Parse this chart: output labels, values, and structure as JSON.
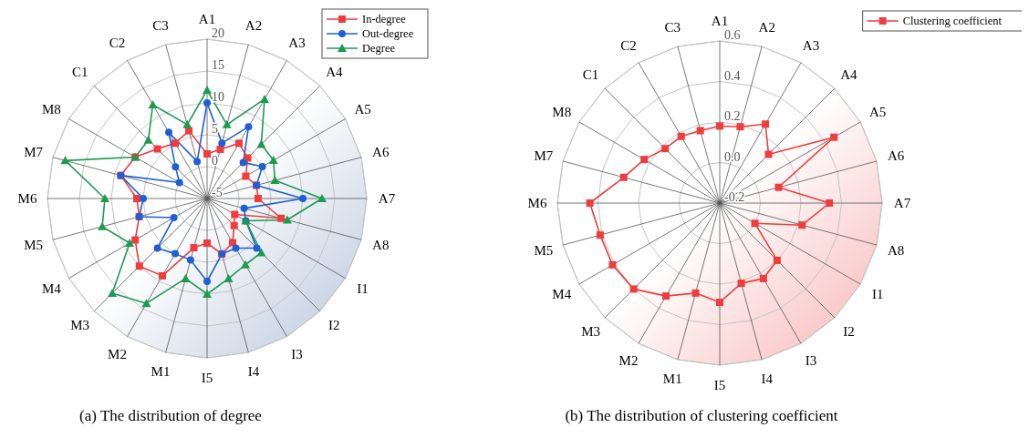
{
  "chart_data": [
    {
      "type": "radar",
      "title": "(a) The distribution of degree",
      "categories": [
        "A1",
        "A2",
        "A3",
        "A4",
        "A5",
        "A6",
        "A7",
        "A8",
        "I1",
        "I2",
        "I3",
        "I4",
        "I5",
        "M1",
        "M2",
        "M3",
        "M4",
        "M5",
        "M6",
        "M7",
        "M8",
        "C1",
        "C2",
        "C3"
      ],
      "series": [
        {
          "name": "In-degree",
          "color": "#f03c3c",
          "marker": "square",
          "values": [
            2,
            3,
            5,
            4,
            2,
            3,
            3,
            7,
            0,
            1,
            3,
            4,
            2,
            3,
            9,
            10,
            8,
            6,
            6,
            9,
            8,
            6,
            5,
            6
          ]
        },
        {
          "name": "Out-degree",
          "color": "#1f5fd6",
          "marker": "circle",
          "values": [
            10,
            4,
            8,
            3,
            5,
            3,
            10,
            1,
            2,
            6,
            4,
            4,
            8,
            5,
            5,
            6,
            1,
            6,
            5,
            9,
            0,
            2,
            7,
            1
          ]
        },
        {
          "name": "Degree",
          "color": "#1e9a50",
          "marker": "triangle",
          "values": [
            12,
            7,
            13,
            7,
            7,
            6,
            13,
            8,
            2,
            7,
            7,
            8,
            10,
            8,
            14,
            16,
            9,
            12,
            11,
            18,
            8,
            8,
            12,
            7
          ]
        }
      ],
      "ylim": [
        -5,
        20
      ],
      "yticks": [
        -5,
        0,
        5,
        10,
        15,
        20
      ],
      "grid": true,
      "legend": "top right"
    },
    {
      "type": "radar",
      "title": "(b) The distribution of clustering coefficient",
      "categories": [
        "A1",
        "A2",
        "A3",
        "A4",
        "A5",
        "A6",
        "A7",
        "A8",
        "I1",
        "I2",
        "I3",
        "I4",
        "I5",
        "M1",
        "M2",
        "M3",
        "M4",
        "M5",
        "M6",
        "M7",
        "M8",
        "C1",
        "C2",
        "C3"
      ],
      "series": [
        {
          "name": "Clustering coefficient",
          "color": "#f03c3c",
          "marker": "square",
          "values": [
            0.18,
            0.19,
            0.25,
            0.14,
            0.45,
            0.1,
            0.34,
            0.22,
            0.0,
            0.2,
            0.23,
            0.21,
            0.29,
            0.26,
            0.33,
            0.4,
            0.41,
            0.41,
            0.44,
            0.29,
            0.23,
            0.18,
            0.18,
            0.17
          ]
        }
      ],
      "ylim": [
        -0.2,
        0.6
      ],
      "yticks": [
        {
          "value": -0.2,
          "label": "-0.2"
        },
        {
          "value": 0,
          "label": "0.0"
        },
        {
          "value": 0.2,
          "label": "0.2"
        },
        {
          "value": 0.4,
          "label": "0.4"
        },
        {
          "value": 0.6,
          "label": "0.6"
        }
      ],
      "grid": true,
      "legend": "top right"
    }
  ]
}
